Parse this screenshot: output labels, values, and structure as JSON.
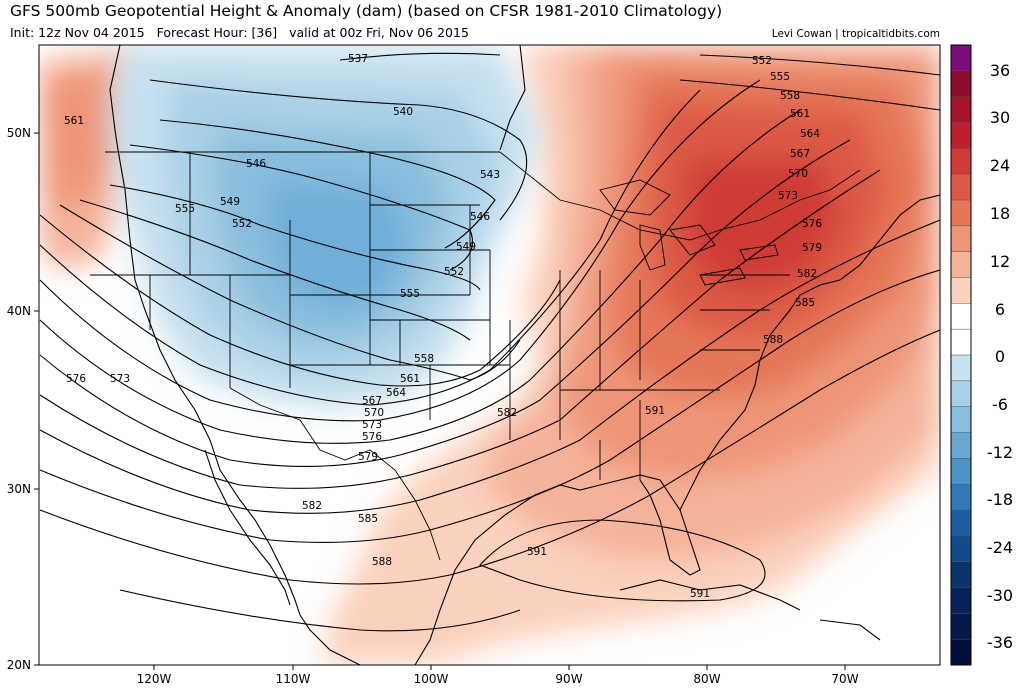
{
  "header": {
    "title": "GFS 500mb Geopotential Height & Anomaly (dam) (based on CFSR 1981-2010 Climatology)",
    "subtitle": "Init: 12z Nov 04 2015   Forecast Hour: [36]   valid at 00z Fri, Nov 06 2015",
    "credit": "Levi Cowan | tropicaltidbits.com"
  },
  "axes": {
    "lon_labels": [
      "120W",
      "110W",
      "100W",
      "90W",
      "80W",
      "70W"
    ],
    "lat_labels": [
      "50N",
      "40N",
      "30N",
      "20N"
    ]
  },
  "colorbar": {
    "labels": [
      "36",
      "30",
      "24",
      "18",
      "12",
      "6",
      "0",
      "-6",
      "-12",
      "-18",
      "-24",
      "-30",
      "-36"
    ],
    "colors": [
      "#7b0c7b",
      "#8e0b2e",
      "#a5142c",
      "#bd1f2d",
      "#cf3b34",
      "#dc5a45",
      "#e57758",
      "#ee9577",
      "#f5b39a",
      "#fbd2bd",
      "#ffffff",
      "#ffffff",
      "#c7e1ef",
      "#a8d0e6",
      "#88bddd",
      "#69a8d2",
      "#4c93c6",
      "#3079b6",
      "#1d5fa2",
      "#134a8c",
      "#0c3570",
      "#06245a",
      "#041a4a",
      "#020f3a"
    ]
  },
  "contour_labels": {
    "c537": "537",
    "c540": "540",
    "c543": "543",
    "c546a": "546",
    "c546b": "546",
    "c549a": "549",
    "c549b": "549",
    "c552a": "552",
    "c552b": "552",
    "c552c": "552",
    "c555a": "555",
    "c555b": "555",
    "c555c": "555",
    "c558a": "558",
    "c558b": "558",
    "c561a": "561",
    "c561b": "561",
    "c561c": "561",
    "c564a": "564",
    "c564b": "564",
    "c567a": "567",
    "c567b": "567",
    "c570a": "570",
    "c570b": "570",
    "c573a": "573",
    "c573b": "573",
    "c573c": "573",
    "c576a": "576",
    "c576b": "576",
    "c576c": "576",
    "c579a": "579",
    "c579b": "579",
    "c582a": "582",
    "c582b": "582",
    "c582c": "582",
    "c585a": "585",
    "c585b": "585",
    "c588a": "588",
    "c588b": "588",
    "c591a": "591",
    "c591b": "591",
    "c591c": "591"
  }
}
